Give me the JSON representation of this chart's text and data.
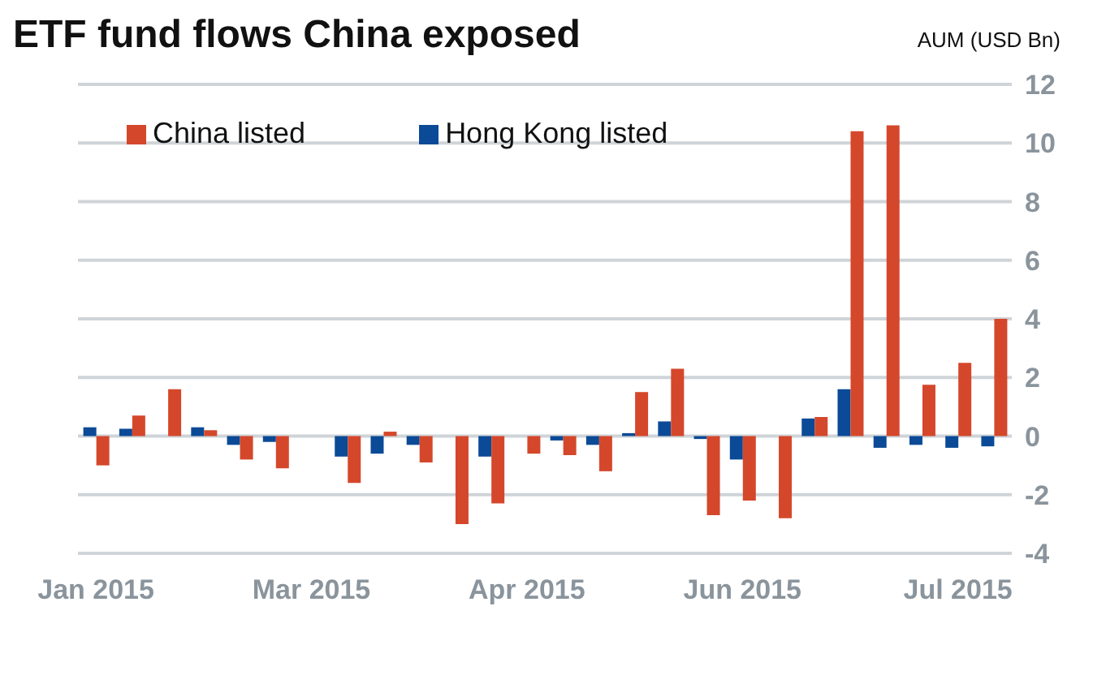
{
  "chart_data": {
    "type": "bar",
    "title": "ETF fund flows China exposed",
    "ylabel": "AUM (USD Bn)",
    "categories": [
      "Jan 2015",
      null,
      null,
      null,
      null,
      null,
      "Mar 2015",
      null,
      null,
      null,
      null,
      null,
      "Apr 2015",
      null,
      null,
      null,
      null,
      null,
      "Jun 2015",
      null,
      null,
      null,
      null,
      null,
      "Jul 2015",
      null
    ],
    "series": [
      {
        "name": "Hong Kong listed",
        "color": "#0b4a96",
        "values": [
          0.3,
          0.25,
          0,
          0.3,
          -0.3,
          -0.2,
          0,
          -0.7,
          -0.6,
          -0.3,
          0,
          -0.7,
          0,
          -0.15,
          -0.3,
          0.1,
          0.5,
          -0.1,
          -0.8,
          0,
          0.6,
          1.6,
          -0.4,
          -0.3,
          -0.4,
          -0.35
        ]
      },
      {
        "name": "China listed",
        "color": "#d5472b",
        "values": [
          -1.0,
          0.7,
          1.6,
          0.2,
          -0.8,
          -1.1,
          0,
          -1.6,
          0.15,
          -0.9,
          -3.0,
          -2.3,
          -0.6,
          -0.65,
          -1.2,
          1.5,
          2.3,
          -2.7,
          -2.2,
          -2.8,
          0.65,
          10.4,
          10.6,
          1.75,
          2.5,
          4.0
        ]
      }
    ],
    "ylim": [
      -4,
      12
    ],
    "yticks": [
      -4,
      -2,
      0,
      2,
      4,
      6,
      8,
      10,
      12
    ],
    "grid": "y",
    "legend": "top left"
  }
}
